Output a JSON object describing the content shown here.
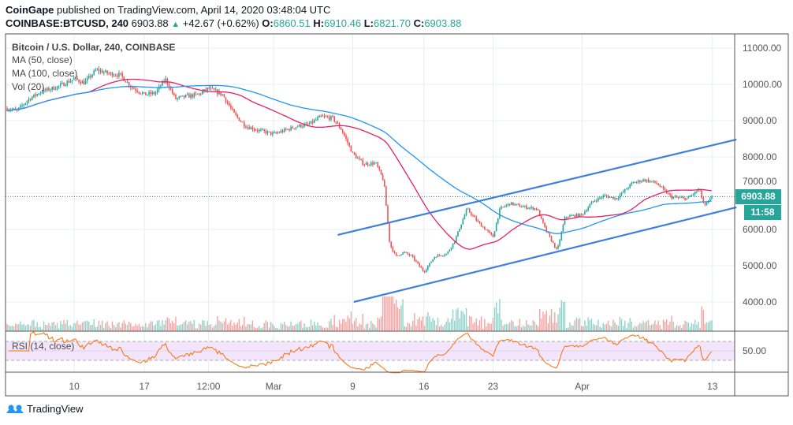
{
  "header": {
    "publisher": "CoinGape",
    "published_text": " published on TradingView.com, April 14, 2020 03:48:04 UTC",
    "symbol": "COINBASE:BTCUSD, 240",
    "last": "6903.88",
    "change": "+42.67 (+0.62%)",
    "o_label": "O:",
    "o": "6860.51",
    "h_label": "H:",
    "h": "6910.46",
    "l_label": "L:",
    "l": "6821.70",
    "c_label": "C:",
    "c": "6903.88"
  },
  "legend": {
    "title": "Bitcoin / U.S. Dollar, 240, COINBASE",
    "ma50": "MA (50, close)",
    "ma100": "MA (100, close)",
    "vol": "Vol (20)",
    "rsi": "RSI (14, close)"
  },
  "price_tag": {
    "value": "6903.88",
    "countdown": "11:58"
  },
  "footer": {
    "brand": "TradingView"
  },
  "colors": {
    "up": "#26a69a",
    "down": "#ef5350",
    "ma50": "#e91e63",
    "ma100": "#2196f3",
    "trend": "#3d7fe0",
    "rsi": "#ff6d00",
    "rsi_band": "#f3e5fc"
  },
  "chart_data": {
    "type": "candlestick",
    "title": "Bitcoin / U.S. Dollar, 240, COINBASE",
    "y_ticks": [
      "11000.00",
      "10000.00",
      "9000.00",
      "8000.00",
      "7000.00",
      "6000.00",
      "5000.00",
      "4000.00"
    ],
    "y_tick_values": [
      11000,
      10000,
      9000,
      8000,
      7000,
      6000,
      5000,
      4000
    ],
    "rsi_ticks": [
      "50.00"
    ],
    "x_ticks": [
      {
        "label": "10",
        "day": 6.7
      },
      {
        "label": "17",
        "day": 13.7
      },
      {
        "label": "12:00",
        "day": 20.1
      },
      {
        "label": "Mar",
        "day": 26.6
      },
      {
        "label": "9",
        "day": 34.5
      },
      {
        "label": "16",
        "day": 41.6
      },
      {
        "label": "23",
        "day": 48.5
      },
      {
        "label": "Apr",
        "day": 57.4
      },
      {
        "label": "13",
        "day": 70.4
      }
    ],
    "ylim": [
      3200,
      11400
    ],
    "close_path_days_price": [
      [
        0,
        9330
      ],
      [
        1.0,
        9280
      ],
      [
        2.2,
        9600
      ],
      [
        3.4,
        9800
      ],
      [
        5.0,
        9930
      ],
      [
        6.7,
        10150
      ],
      [
        7.7,
        10040
      ],
      [
        8.9,
        10400
      ],
      [
        10.1,
        10300
      ],
      [
        11.3,
        10260
      ],
      [
        12.4,
        9930
      ],
      [
        13.7,
        9720
      ],
      [
        14.8,
        9760
      ],
      [
        15.8,
        10150
      ],
      [
        16.8,
        9600
      ],
      [
        17.9,
        9670
      ],
      [
        19.1,
        9720
      ],
      [
        20.1,
        9890
      ],
      [
        21.5,
        9720
      ],
      [
        22.7,
        9170
      ],
      [
        23.8,
        8850
      ],
      [
        25.0,
        8740
      ],
      [
        26.6,
        8630
      ],
      [
        27.8,
        8740
      ],
      [
        29.0,
        8850
      ],
      [
        30.1,
        8890
      ],
      [
        31.3,
        9110
      ],
      [
        32.5,
        9070
      ],
      [
        33.4,
        8740
      ],
      [
        34.5,
        8090
      ],
      [
        35.6,
        7800
      ],
      [
        36.8,
        7830
      ],
      [
        37.6,
        7330
      ],
      [
        38.2,
        5590
      ],
      [
        38.8,
        5260
      ],
      [
        39.6,
        5370
      ],
      [
        40.4,
        5260
      ],
      [
        41.6,
        4830
      ],
      [
        42.7,
        5260
      ],
      [
        43.9,
        5330
      ],
      [
        44.7,
        5700
      ],
      [
        45.9,
        6570
      ],
      [
        47.0,
        6200
      ],
      [
        48.5,
        5800
      ],
      [
        49.2,
        6570
      ],
      [
        50.2,
        6720
      ],
      [
        51.4,
        6630
      ],
      [
        52.9,
        6570
      ],
      [
        53.7,
        6020
      ],
      [
        54.9,
        5410
      ],
      [
        55.7,
        6350
      ],
      [
        57.4,
        6410
      ],
      [
        58.5,
        6780
      ],
      [
        59.6,
        6930
      ],
      [
        60.8,
        6850
      ],
      [
        62.4,
        7280
      ],
      [
        63.6,
        7370
      ],
      [
        64.8,
        7280
      ],
      [
        66.3,
        6890
      ],
      [
        67.9,
        6850
      ],
      [
        69.1,
        7110
      ],
      [
        69.6,
        6630
      ],
      [
        70.4,
        6903.88
      ]
    ],
    "trendlines": [
      {
        "name": "upper-channel",
        "from": [
          33.0,
          5850
        ],
        "to": [
          72.8,
          8480
        ]
      },
      {
        "name": "lower-channel",
        "from": [
          34.6,
          4000
        ],
        "to": [
          72.8,
          6610
        ]
      }
    ],
    "last_price": 6903.88,
    "rsi_bands": [
      30,
      70
    ]
  }
}
